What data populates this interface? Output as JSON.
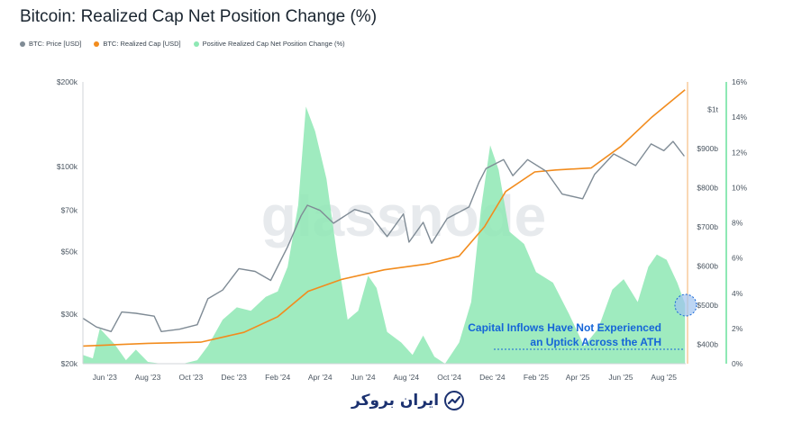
{
  "title": "Bitcoin: Realized Cap Net Position Change (%)",
  "legend": [
    {
      "label": "BTC: Price [USD]",
      "color": "#7f8b95"
    },
    {
      "label": "BTC: Realized Cap [USD]",
      "color": "#f28c1e"
    },
    {
      "label": "Positive Realized Cap Net Position Change (%)",
      "color": "#8ee8b4"
    }
  ],
  "watermark": "glassnode",
  "annotation": {
    "line1": "Capital Inflows Have Not Experienced",
    "line2": "an Uptick Across the ATH"
  },
  "footer": {
    "brand": "ایران بروکر"
  },
  "chart_data": {
    "type": "line",
    "x_ticks": [
      "Jun '23",
      "Aug '23",
      "Oct '23",
      "Dec '23",
      "Feb '24",
      "Apr '24",
      "Jun '24",
      "Aug '24",
      "Oct '24",
      "Dec '24",
      "Feb '25",
      "Apr '25",
      "Jun '25",
      "Aug '25"
    ],
    "x_range": [
      "2023-05-01",
      "2025-09-01"
    ],
    "left_axis": {
      "scale": "log",
      "ticks": [
        "$20k",
        "$30k",
        "$50k",
        "$70k",
        "$100k",
        "$200k"
      ],
      "values": [
        20000,
        30000,
        50000,
        70000,
        100000,
        200000
      ],
      "range": [
        20000,
        200000
      ]
    },
    "right_axis_1": {
      "ticks": [
        "$400b",
        "$500b",
        "$600b",
        "$700b",
        "$800b",
        "$900b",
        "$1t"
      ],
      "values": [
        400,
        500,
        600,
        700,
        800,
        900,
        1000
      ],
      "range": [
        350,
        1070
      ]
    },
    "right_axis_2": {
      "ticks": [
        "0%",
        "2%",
        "4%",
        "6%",
        "8%",
        "10%",
        "12%",
        "14%",
        "16%"
      ],
      "values": [
        0,
        2,
        4,
        6,
        8,
        10,
        12,
        14,
        16
      ],
      "range": [
        0,
        16
      ]
    },
    "series": [
      {
        "name": "BTC: Price [USD]",
        "axis": "left",
        "color": "#7f8b95",
        "points": [
          [
            "2023-05-01",
            29000
          ],
          [
            "2023-05-20",
            27000
          ],
          [
            "2023-06-10",
            26000
          ],
          [
            "2023-06-25",
            30500
          ],
          [
            "2023-07-15",
            30200
          ],
          [
            "2023-08-10",
            29500
          ],
          [
            "2023-08-20",
            26000
          ],
          [
            "2023-09-15",
            26500
          ],
          [
            "2023-10-10",
            27500
          ],
          [
            "2023-10-25",
            34000
          ],
          [
            "2023-11-15",
            36500
          ],
          [
            "2023-12-08",
            43500
          ],
          [
            "2023-12-31",
            42500
          ],
          [
            "2024-01-22",
            39500
          ],
          [
            "2024-02-15",
            52000
          ],
          [
            "2024-03-05",
            67000
          ],
          [
            "2024-03-14",
            73000
          ],
          [
            "2024-04-01",
            70000
          ],
          [
            "2024-04-20",
            63000
          ],
          [
            "2024-05-20",
            70500
          ],
          [
            "2024-06-10",
            68000
          ],
          [
            "2024-07-05",
            56500
          ],
          [
            "2024-07-28",
            68000
          ],
          [
            "2024-08-05",
            54000
          ],
          [
            "2024-08-25",
            63500
          ],
          [
            "2024-09-06",
            53500
          ],
          [
            "2024-09-28",
            65500
          ],
          [
            "2024-10-29",
            72000
          ],
          [
            "2024-11-12",
            88000
          ],
          [
            "2024-11-22",
            98500
          ],
          [
            "2024-12-17",
            106000
          ],
          [
            "2024-12-30",
            93000
          ],
          [
            "2025-01-20",
            106000
          ],
          [
            "2025-02-15",
            96500
          ],
          [
            "2025-03-10",
            80000
          ],
          [
            "2025-04-08",
            77000
          ],
          [
            "2025-04-25",
            94000
          ],
          [
            "2025-05-22",
            111000
          ],
          [
            "2025-06-22",
            101000
          ],
          [
            "2025-07-14",
            120500
          ],
          [
            "2025-08-01",
            114000
          ],
          [
            "2025-08-14",
            123000
          ],
          [
            "2025-08-30",
            109000
          ]
        ]
      },
      {
        "name": "BTC: Realized Cap [USD]",
        "axis": "right_1",
        "color": "#f28c1e",
        "points": [
          [
            "2023-05-01",
            395
          ],
          [
            "2023-08-01",
            402
          ],
          [
            "2023-10-15",
            405
          ],
          [
            "2023-12-15",
            430
          ],
          [
            "2024-02-01",
            470
          ],
          [
            "2024-03-15",
            535
          ],
          [
            "2024-05-01",
            565
          ],
          [
            "2024-07-01",
            590
          ],
          [
            "2024-09-01",
            605
          ],
          [
            "2024-10-15",
            625
          ],
          [
            "2024-11-20",
            700
          ],
          [
            "2024-12-20",
            790
          ],
          [
            "2025-01-30",
            840
          ],
          [
            "2025-03-01",
            845
          ],
          [
            "2025-04-20",
            850
          ],
          [
            "2025-06-01",
            905
          ],
          [
            "2025-07-15",
            980
          ],
          [
            "2025-08-31",
            1050
          ]
        ]
      },
      {
        "name": "Positive Realized Cap Net Position Change (%)",
        "axis": "right_2",
        "color": "#8ee8b4",
        "type": "area",
        "points": [
          [
            "2023-05-01",
            0.5
          ],
          [
            "2023-05-15",
            0.3
          ],
          [
            "2023-05-25",
            2.0
          ],
          [
            "2023-06-15",
            1.1
          ],
          [
            "2023-07-01",
            0.2
          ],
          [
            "2023-07-15",
            0.8
          ],
          [
            "2023-08-01",
            0.1
          ],
          [
            "2023-08-20",
            0.0
          ],
          [
            "2023-09-20",
            0.0
          ],
          [
            "2023-10-10",
            0.2
          ],
          [
            "2023-10-25",
            1.0
          ],
          [
            "2023-11-15",
            2.5
          ],
          [
            "2023-12-05",
            3.2
          ],
          [
            "2023-12-25",
            3.0
          ],
          [
            "2024-01-15",
            3.8
          ],
          [
            "2024-02-01",
            4.1
          ],
          [
            "2024-02-15",
            5.5
          ],
          [
            "2024-03-01",
            9.0
          ],
          [
            "2024-03-12",
            14.6
          ],
          [
            "2024-03-25",
            13.2
          ],
          [
            "2024-04-10",
            10.5
          ],
          [
            "2024-04-25",
            6.2
          ],
          [
            "2024-05-10",
            2.5
          ],
          [
            "2024-05-25",
            3.0
          ],
          [
            "2024-06-08",
            5.0
          ],
          [
            "2024-06-20",
            4.3
          ],
          [
            "2024-07-05",
            1.8
          ],
          [
            "2024-07-25",
            1.2
          ],
          [
            "2024-08-10",
            0.5
          ],
          [
            "2024-08-25",
            1.6
          ],
          [
            "2024-09-10",
            0.4
          ],
          [
            "2024-09-25",
            0.0
          ],
          [
            "2024-10-15",
            1.2
          ],
          [
            "2024-11-01",
            3.5
          ],
          [
            "2024-11-15",
            8.8
          ],
          [
            "2024-11-28",
            12.4
          ],
          [
            "2024-12-10",
            11.0
          ],
          [
            "2024-12-25",
            7.5
          ],
          [
            "2025-01-15",
            6.8
          ],
          [
            "2025-02-01",
            5.2
          ],
          [
            "2025-02-25",
            4.6
          ],
          [
            "2025-03-20",
            2.8
          ],
          [
            "2025-04-10",
            1.0
          ],
          [
            "2025-04-30",
            2.0
          ],
          [
            "2025-05-20",
            4.2
          ],
          [
            "2025-06-05",
            4.8
          ],
          [
            "2025-06-25",
            3.5
          ],
          [
            "2025-07-10",
            5.5
          ],
          [
            "2025-07-22",
            6.2
          ],
          [
            "2025-08-05",
            5.9
          ],
          [
            "2025-08-20",
            4.6
          ],
          [
            "2025-08-31",
            3.4
          ]
        ]
      }
    ]
  }
}
